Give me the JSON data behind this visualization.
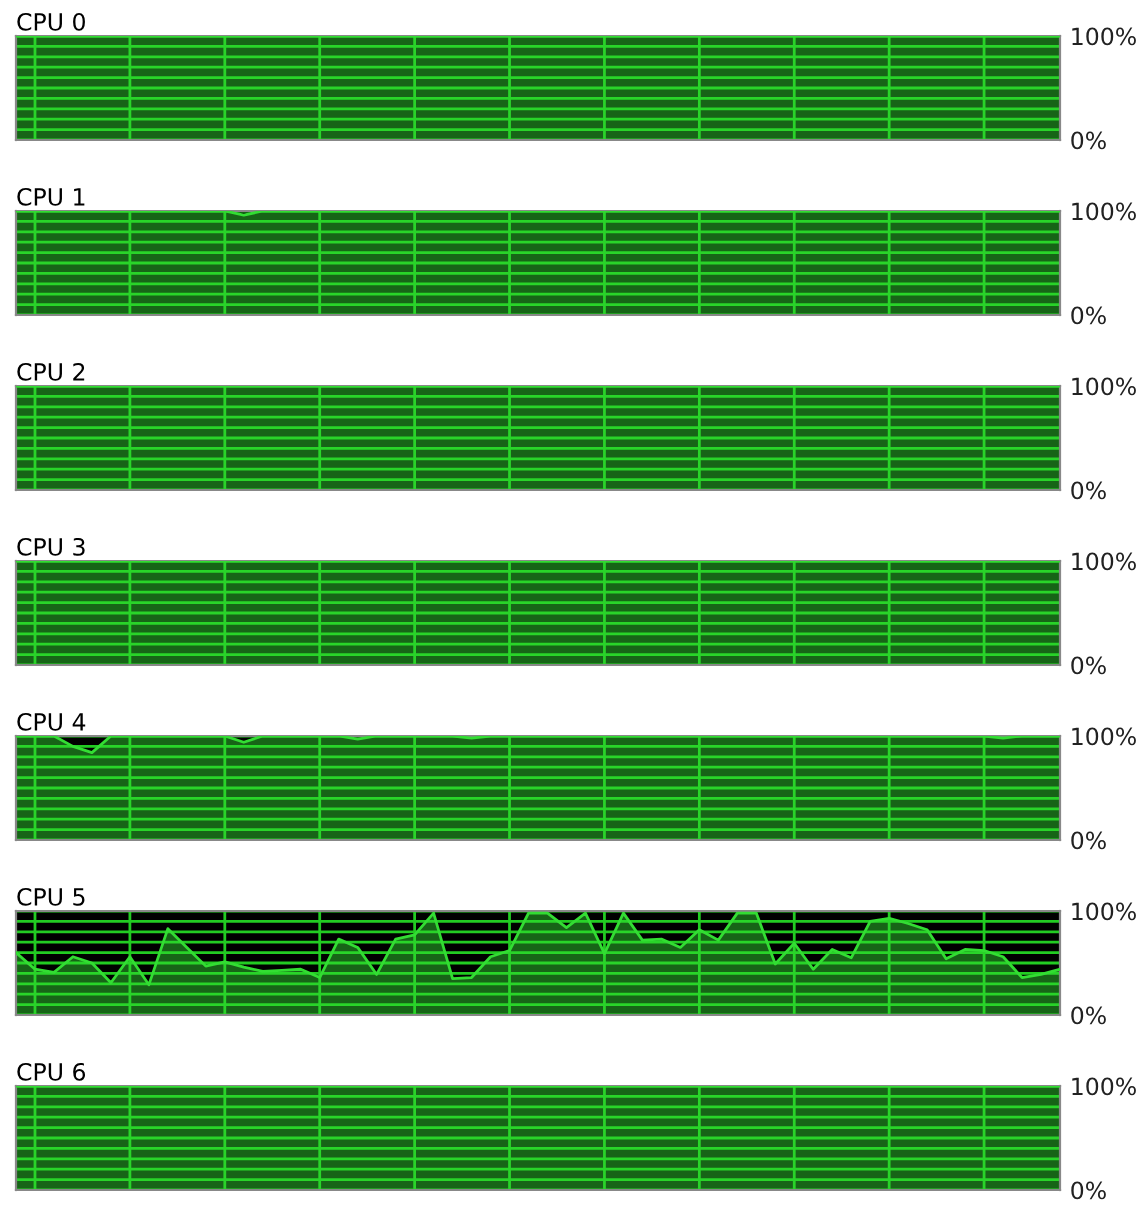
{
  "chart_data": [
    {
      "type": "area",
      "title": "CPU 0",
      "categories": [
        null,
        null,
        null,
        null,
        null,
        null,
        null,
        null,
        null,
        null,
        null,
        null,
        null,
        null,
        null,
        null,
        null,
        null,
        null,
        null,
        null,
        null,
        null,
        null,
        null,
        null,
        null,
        null,
        null,
        null,
        null,
        null,
        null,
        null,
        null,
        null,
        null,
        null,
        null,
        null,
        null,
        null,
        null,
        null,
        null,
        null,
        null,
        null,
        null,
        null,
        null,
        null,
        null,
        null,
        null,
        null
      ],
      "values": [
        100,
        100,
        100,
        100,
        100,
        100,
        100,
        100,
        100,
        100,
        100,
        100,
        100,
        100,
        100,
        100,
        100,
        100,
        100,
        100,
        100,
        100,
        100,
        100,
        100,
        100,
        100,
        100,
        100,
        100,
        100,
        100,
        100,
        100,
        100,
        100,
        100,
        100,
        100,
        100,
        100,
        100,
        100,
        100,
        100,
        100,
        100,
        100,
        100,
        100,
        100,
        100,
        100,
        100,
        100,
        100
      ],
      "color": "#33dd33",
      "ylim": [
        0,
        100
      ],
      "yticks": [
        {
          "value": 0,
          "label": "0%"
        },
        {
          "value": 10,
          "label": null
        },
        {
          "value": 20,
          "label": null
        },
        {
          "value": 30,
          "label": null
        },
        {
          "value": 40,
          "label": null
        },
        {
          "value": 50,
          "label": null
        },
        {
          "value": 60,
          "label": null
        },
        {
          "value": 70,
          "label": null
        },
        {
          "value": 80,
          "label": null
        },
        {
          "value": 90,
          "label": null
        },
        {
          "value": 100,
          "label": "100%"
        }
      ],
      "grid": true,
      "tick_labels": "y"
    },
    {
      "type": "area",
      "title": "CPU 1",
      "categories": [
        null,
        null,
        null,
        null,
        null,
        null,
        null,
        null,
        null,
        null,
        null,
        null,
        null,
        null,
        null,
        null,
        null,
        null,
        null,
        null,
        null,
        null,
        null,
        null,
        null,
        null,
        null,
        null,
        null,
        null,
        null,
        null,
        null,
        null,
        null,
        null,
        null,
        null,
        null,
        null,
        null,
        null,
        null,
        null,
        null,
        null,
        null,
        null,
        null,
        null,
        null,
        null,
        null,
        null,
        null,
        null
      ],
      "values": [
        100,
        100,
        100,
        100,
        100,
        100,
        100,
        100,
        100,
        100,
        100,
        100,
        96,
        100,
        100,
        100,
        100,
        100,
        100,
        100,
        100,
        100,
        100,
        100,
        100,
        100,
        100,
        100,
        100,
        100,
        100,
        100,
        100,
        100,
        100,
        100,
        100,
        100,
        100,
        100,
        100,
        100,
        100,
        100,
        100,
        100,
        100,
        100,
        100,
        100,
        100,
        100,
        100,
        100,
        100,
        100
      ],
      "color": "#33dd33",
      "ylim": [
        0,
        100
      ],
      "yticks": [
        {
          "value": 0,
          "label": "0%"
        },
        {
          "value": 10,
          "label": null
        },
        {
          "value": 20,
          "label": null
        },
        {
          "value": 30,
          "label": null
        },
        {
          "value": 40,
          "label": null
        },
        {
          "value": 50,
          "label": null
        },
        {
          "value": 60,
          "label": null
        },
        {
          "value": 70,
          "label": null
        },
        {
          "value": 80,
          "label": null
        },
        {
          "value": 90,
          "label": null
        },
        {
          "value": 100,
          "label": "100%"
        }
      ],
      "grid": true,
      "tick_labels": "y"
    },
    {
      "type": "area",
      "title": "CPU 2",
      "categories": [
        null,
        null,
        null,
        null,
        null,
        null,
        null,
        null,
        null,
        null,
        null,
        null,
        null,
        null,
        null,
        null,
        null,
        null,
        null,
        null,
        null,
        null,
        null,
        null,
        null,
        null,
        null,
        null,
        null,
        null,
        null,
        null,
        null,
        null,
        null,
        null,
        null,
        null,
        null,
        null,
        null,
        null,
        null,
        null,
        null,
        null,
        null,
        null,
        null,
        null,
        null,
        null,
        null,
        null,
        null,
        null
      ],
      "values": [
        100,
        100,
        100,
        100,
        100,
        100,
        100,
        100,
        100,
        100,
        100,
        100,
        100,
        100,
        100,
        100,
        100,
        100,
        100,
        100,
        100,
        100,
        100,
        100,
        100,
        100,
        100,
        100,
        100,
        100,
        100,
        100,
        100,
        100,
        100,
        100,
        100,
        100,
        100,
        100,
        100,
        100,
        100,
        100,
        100,
        100,
        100,
        100,
        100,
        100,
        100,
        100,
        100,
        100,
        100,
        100
      ],
      "color": "#33dd33",
      "ylim": [
        0,
        100
      ],
      "yticks": [
        {
          "value": 0,
          "label": "0%"
        },
        {
          "value": 10,
          "label": null
        },
        {
          "value": 20,
          "label": null
        },
        {
          "value": 30,
          "label": null
        },
        {
          "value": 40,
          "label": null
        },
        {
          "value": 50,
          "label": null
        },
        {
          "value": 60,
          "label": null
        },
        {
          "value": 70,
          "label": null
        },
        {
          "value": 80,
          "label": null
        },
        {
          "value": 90,
          "label": null
        },
        {
          "value": 100,
          "label": "100%"
        }
      ],
      "grid": true,
      "tick_labels": "y"
    },
    {
      "type": "area",
      "title": "CPU 3",
      "categories": [
        null,
        null,
        null,
        null,
        null,
        null,
        null,
        null,
        null,
        null,
        null,
        null,
        null,
        null,
        null,
        null,
        null,
        null,
        null,
        null,
        null,
        null,
        null,
        null,
        null,
        null,
        null,
        null,
        null,
        null,
        null,
        null,
        null,
        null,
        null,
        null,
        null,
        null,
        null,
        null,
        null,
        null,
        null,
        null,
        null,
        null,
        null,
        null,
        null,
        null,
        null,
        null,
        null,
        null,
        null,
        null
      ],
      "values": [
        100,
        100,
        100,
        100,
        100,
        100,
        100,
        100,
        100,
        100,
        100,
        100,
        100,
        100,
        100,
        100,
        100,
        100,
        100,
        100,
        100,
        100,
        100,
        100,
        100,
        100,
        100,
        100,
        100,
        100,
        100,
        100,
        100,
        100,
        100,
        100,
        100,
        100,
        100,
        100,
        100,
        100,
        100,
        100,
        100,
        100,
        100,
        100,
        100,
        100,
        100,
        100,
        100,
        100,
        100,
        100
      ],
      "color": "#33dd33",
      "ylim": [
        0,
        100
      ],
      "yticks": [
        {
          "value": 0,
          "label": "0%"
        },
        {
          "value": 10,
          "label": null
        },
        {
          "value": 20,
          "label": null
        },
        {
          "value": 30,
          "label": null
        },
        {
          "value": 40,
          "label": null
        },
        {
          "value": 50,
          "label": null
        },
        {
          "value": 60,
          "label": null
        },
        {
          "value": 70,
          "label": null
        },
        {
          "value": 80,
          "label": null
        },
        {
          "value": 90,
          "label": null
        },
        {
          "value": 100,
          "label": "100%"
        }
      ],
      "grid": true,
      "tick_labels": "y"
    },
    {
      "type": "area",
      "title": "CPU 4",
      "categories": [
        null,
        null,
        null,
        null,
        null,
        null,
        null,
        null,
        null,
        null,
        null,
        null,
        null,
        null,
        null,
        null,
        null,
        null,
        null,
        null,
        null,
        null,
        null,
        null,
        null,
        null,
        null,
        null,
        null,
        null,
        null,
        null,
        null,
        null,
        null,
        null,
        null,
        null,
        null,
        null,
        null,
        null,
        null,
        null,
        null,
        null,
        null,
        null,
        null,
        null,
        null,
        null,
        null,
        null,
        null,
        null
      ],
      "values": [
        100,
        100,
        100,
        90,
        84,
        100,
        100,
        100,
        100,
        100,
        100,
        100,
        94,
        100,
        100,
        100,
        100,
        100,
        97,
        100,
        100,
        100,
        100,
        100,
        98,
        100,
        100,
        100,
        100,
        100,
        100,
        100,
        100,
        100,
        100,
        100,
        100,
        100,
        100,
        100,
        100,
        100,
        100,
        100,
        100,
        100,
        100,
        100,
        100,
        100,
        100,
        100,
        98,
        100,
        100,
        100
      ],
      "color": "#33dd33",
      "ylim": [
        0,
        100
      ],
      "yticks": [
        {
          "value": 0,
          "label": "0%"
        },
        {
          "value": 10,
          "label": null
        },
        {
          "value": 20,
          "label": null
        },
        {
          "value": 30,
          "label": null
        },
        {
          "value": 40,
          "label": null
        },
        {
          "value": 50,
          "label": null
        },
        {
          "value": 60,
          "label": null
        },
        {
          "value": 70,
          "label": null
        },
        {
          "value": 80,
          "label": null
        },
        {
          "value": 90,
          "label": null
        },
        {
          "value": 100,
          "label": "100%"
        }
      ],
      "grid": true,
      "tick_labels": "y"
    },
    {
      "type": "area",
      "title": "CPU 5",
      "categories": [
        null,
        null,
        null,
        null,
        null,
        null,
        null,
        null,
        null,
        null,
        null,
        null,
        null,
        null,
        null,
        null,
        null,
        null,
        null,
        null,
        null,
        null,
        null,
        null,
        null,
        null,
        null,
        null,
        null,
        null,
        null,
        null,
        null,
        null,
        null,
        null,
        null,
        null,
        null,
        null,
        null,
        null,
        null,
        null,
        null,
        null,
        null,
        null,
        null,
        null,
        null,
        null,
        null,
        null,
        null,
        null
      ],
      "values": [
        60,
        44,
        41,
        56,
        50,
        31,
        56,
        29,
        83,
        65,
        47,
        51,
        46,
        42,
        43,
        44,
        36,
        73,
        65,
        39,
        73,
        77,
        98,
        35,
        36,
        56,
        62,
        98,
        98,
        84,
        98,
        59,
        98,
        72,
        73,
        65,
        82,
        72,
        98,
        98,
        49,
        69,
        44,
        63,
        55,
        90,
        93,
        88,
        82,
        54,
        63,
        62,
        56,
        36,
        39,
        44
      ],
      "color": "#33dd33",
      "ylim": [
        0,
        100
      ],
      "yticks": [
        {
          "value": 0,
          "label": "0%"
        },
        {
          "value": 10,
          "label": null
        },
        {
          "value": 20,
          "label": null
        },
        {
          "value": 30,
          "label": null
        },
        {
          "value": 40,
          "label": null
        },
        {
          "value": 50,
          "label": null
        },
        {
          "value": 60,
          "label": null
        },
        {
          "value": 70,
          "label": null
        },
        {
          "value": 80,
          "label": null
        },
        {
          "value": 90,
          "label": null
        },
        {
          "value": 100,
          "label": "100%"
        }
      ],
      "grid": true,
      "tick_labels": "y"
    },
    {
      "type": "area",
      "title": "CPU 6",
      "categories": [
        null,
        null,
        null,
        null,
        null,
        null,
        null,
        null,
        null,
        null,
        null,
        null,
        null,
        null,
        null,
        null,
        null,
        null,
        null,
        null,
        null,
        null,
        null,
        null,
        null,
        null,
        null,
        null,
        null,
        null,
        null,
        null,
        null,
        null,
        null,
        null,
        null,
        null,
        null,
        null,
        null,
        null,
        null,
        null,
        null,
        null,
        null,
        null,
        null,
        null,
        null,
        null,
        null,
        null,
        null,
        null
      ],
      "values": [
        100,
        100,
        100,
        100,
        100,
        100,
        100,
        100,
        100,
        100,
        100,
        100,
        100,
        100,
        100,
        100,
        100,
        100,
        100,
        100,
        100,
        100,
        100,
        100,
        100,
        100,
        100,
        100,
        100,
        100,
        100,
        100,
        100,
        100,
        100,
        100,
        100,
        100,
        100,
        100,
        100,
        100,
        100,
        100,
        100,
        100,
        100,
        100,
        100,
        100,
        100,
        100,
        100,
        100,
        100,
        100
      ],
      "color": "#33dd33",
      "ylim": [
        0,
        100
      ],
      "yticks": [
        {
          "value": 0,
          "label": "0%"
        },
        {
          "value": 10,
          "label": null
        },
        {
          "value": 20,
          "label": null
        },
        {
          "value": 30,
          "label": null
        },
        {
          "value": 40,
          "label": null
        },
        {
          "value": 50,
          "label": null
        },
        {
          "value": 60,
          "label": null
        },
        {
          "value": 70,
          "label": null
        },
        {
          "value": 80,
          "label": null
        },
        {
          "value": 90,
          "label": null
        },
        {
          "value": 100,
          "label": "100%"
        }
      ],
      "grid": true,
      "tick_labels": "y"
    }
  ]
}
